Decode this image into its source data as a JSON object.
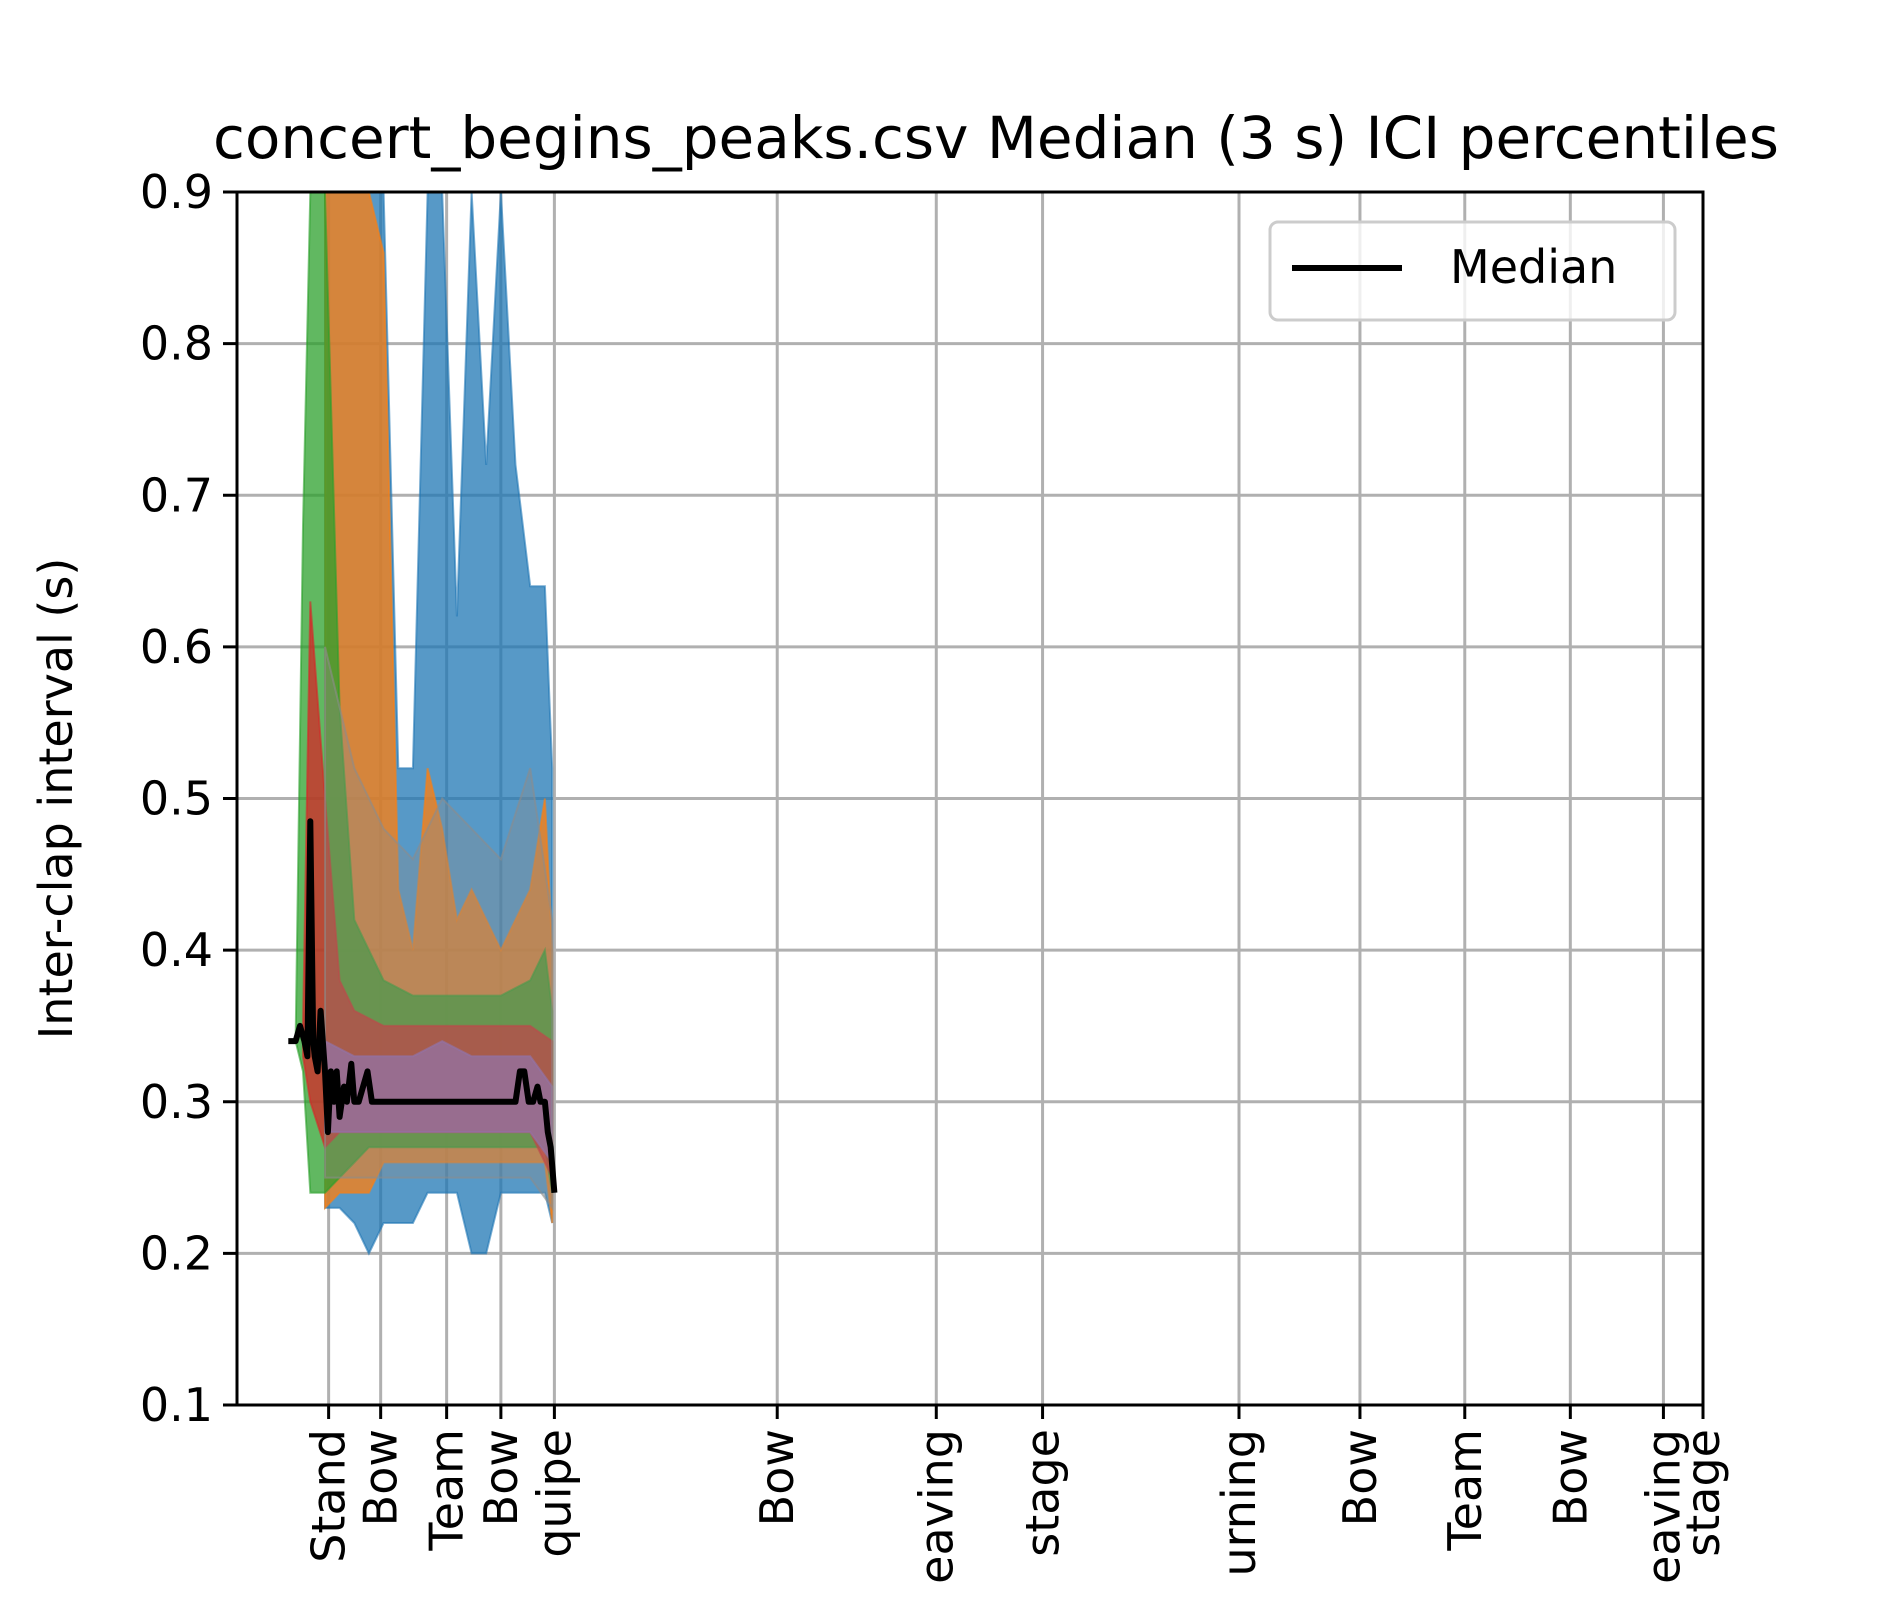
{
  "chart_data": {
    "type": "area",
    "title": "concert_begins_peaks.csv Median (3 s) ICI percentiles",
    "ylabel": "Inter-clap interval (s)",
    "xlabel": "",
    "ylim": [
      0.1,
      0.9
    ],
    "yticks": [
      "0.1",
      "0.2",
      "0.3",
      "0.4",
      "0.5",
      "0.6",
      "0.7",
      "0.8",
      "0.9"
    ],
    "grid": true,
    "legend_position": "top-right",
    "legend": [
      "Median"
    ],
    "xlim": [
      0,
      1
    ],
    "xticks": [
      {
        "x": 0.0625,
        "label": "Stand"
      },
      {
        "x": 0.098,
        "label": "Bow"
      },
      {
        "x": 0.143,
        "label": "Team"
      },
      {
        "x": 0.18,
        "label": "Bow"
      },
      {
        "x": 0.2165,
        "label": "quipe"
      },
      {
        "x": 0.3685,
        "label": "Bow"
      },
      {
        "x": 0.477,
        "label": "eaving"
      },
      {
        "x": 0.5495,
        "label": "stage"
      },
      {
        "x": 0.6835,
        "label": "urning"
      },
      {
        "x": 0.766,
        "label": "Bow"
      },
      {
        "x": 0.8375,
        "label": "Team"
      },
      {
        "x": 0.9095,
        "label": "Bow"
      },
      {
        "x": 0.973,
        "label": "eaving"
      },
      {
        "x": 1.0,
        "label": "stage"
      }
    ],
    "bands": [
      {
        "color": "#1f77b4",
        "opacity": 0.75,
        "x": [
          0.06,
          0.07,
          0.08,
          0.09,
          0.1,
          0.11,
          0.12,
          0.13,
          0.14,
          0.15,
          0.16,
          0.17,
          0.18,
          0.19,
          0.2,
          0.21,
          0.215
        ],
        "upper": [
          0.9,
          0.9,
          0.9,
          0.9,
          0.9,
          0.52,
          0.52,
          0.9,
          0.9,
          0.62,
          0.9,
          0.72,
          0.9,
          0.72,
          0.64,
          0.64,
          0.52
        ],
        "lower": [
          0.23,
          0.23,
          0.22,
          0.2,
          0.22,
          0.22,
          0.22,
          0.24,
          0.24,
          0.24,
          0.2,
          0.2,
          0.24,
          0.24,
          0.24,
          0.24,
          0.22
        ]
      },
      {
        "color": "#ff7f0e",
        "opacity": 0.75,
        "x": [
          0.06,
          0.07,
          0.08,
          0.09,
          0.1,
          0.11,
          0.12,
          0.13,
          0.14,
          0.15,
          0.16,
          0.17,
          0.18,
          0.19,
          0.2,
          0.21,
          0.215
        ],
        "upper": [
          0.9,
          0.9,
          0.9,
          0.9,
          0.86,
          0.44,
          0.4,
          0.52,
          0.48,
          0.42,
          0.44,
          0.42,
          0.4,
          0.42,
          0.44,
          0.5,
          0.4
        ],
        "lower": [
          0.23,
          0.24,
          0.24,
          0.24,
          0.26,
          0.26,
          0.26,
          0.26,
          0.26,
          0.26,
          0.26,
          0.26,
          0.26,
          0.26,
          0.26,
          0.26,
          0.22
        ]
      },
      {
        "color": "#2ca02c",
        "opacity": 0.75,
        "x": [
          0.04,
          0.045,
          0.05,
          0.06,
          0.07,
          0.08,
          0.09,
          0.1,
          0.12,
          0.14,
          0.16,
          0.18,
          0.2,
          0.21,
          0.215
        ],
        "upper": [
          0.34,
          0.68,
          0.9,
          0.9,
          0.56,
          0.42,
          0.4,
          0.38,
          0.37,
          0.37,
          0.37,
          0.37,
          0.38,
          0.4,
          0.36
        ],
        "lower": [
          0.34,
          0.32,
          0.24,
          0.24,
          0.25,
          0.26,
          0.27,
          0.27,
          0.27,
          0.27,
          0.27,
          0.27,
          0.27,
          0.27,
          0.24
        ]
      },
      {
        "color": "#d62728",
        "opacity": 0.75,
        "x": [
          0.045,
          0.05,
          0.06,
          0.07,
          0.08,
          0.1,
          0.12,
          0.14,
          0.16,
          0.18,
          0.2,
          0.215
        ],
        "upper": [
          0.35,
          0.63,
          0.5,
          0.38,
          0.36,
          0.35,
          0.35,
          0.35,
          0.35,
          0.35,
          0.35,
          0.34
        ],
        "lower": [
          0.33,
          0.3,
          0.27,
          0.28,
          0.28,
          0.28,
          0.28,
          0.28,
          0.28,
          0.28,
          0.28,
          0.25
        ]
      },
      {
        "color": "#9467bd",
        "opacity": 0.7,
        "x": [
          0.06,
          0.08,
          0.1,
          0.12,
          0.14,
          0.16,
          0.18,
          0.2,
          0.215
        ],
        "upper": [
          0.34,
          0.33,
          0.33,
          0.33,
          0.34,
          0.33,
          0.33,
          0.33,
          0.31
        ],
        "lower": [
          0.28,
          0.28,
          0.28,
          0.28,
          0.28,
          0.28,
          0.28,
          0.28,
          0.26
        ]
      },
      {
        "color": "#8c8c8c",
        "opacity": 0.35,
        "x": [
          0.06,
          0.08,
          0.1,
          0.12,
          0.14,
          0.16,
          0.18,
          0.2,
          0.215
        ],
        "upper": [
          0.6,
          0.52,
          0.48,
          0.46,
          0.5,
          0.48,
          0.46,
          0.52,
          0.42
        ],
        "lower": [
          0.25,
          0.25,
          0.25,
          0.25,
          0.25,
          0.25,
          0.25,
          0.25,
          0.23
        ]
      }
    ],
    "series": [
      {
        "name": "Median",
        "color": "#000000",
        "x": [
          0.035,
          0.04,
          0.043,
          0.046,
          0.048,
          0.05,
          0.052,
          0.053,
          0.055,
          0.057,
          0.06,
          0.062,
          0.064,
          0.066,
          0.068,
          0.07,
          0.073,
          0.075,
          0.078,
          0.08,
          0.083,
          0.086,
          0.089,
          0.092,
          0.095,
          0.097,
          0.1,
          0.11,
          0.12,
          0.13,
          0.14,
          0.15,
          0.16,
          0.17,
          0.18,
          0.19,
          0.193,
          0.196,
          0.199,
          0.202,
          0.205,
          0.207,
          0.21,
          0.212,
          0.214,
          0.2165
        ],
        "y": [
          0.34,
          0.34,
          0.35,
          0.34,
          0.33,
          0.485,
          0.34,
          0.33,
          0.32,
          0.36,
          0.32,
          0.28,
          0.32,
          0.3,
          0.32,
          0.29,
          0.31,
          0.3,
          0.325,
          0.3,
          0.3,
          0.31,
          0.32,
          0.3,
          0.3,
          0.3,
          0.3,
          0.3,
          0.3,
          0.3,
          0.3,
          0.3,
          0.3,
          0.3,
          0.3,
          0.3,
          0.32,
          0.32,
          0.3,
          0.3,
          0.31,
          0.3,
          0.3,
          0.28,
          0.27,
          0.24
        ]
      }
    ]
  }
}
